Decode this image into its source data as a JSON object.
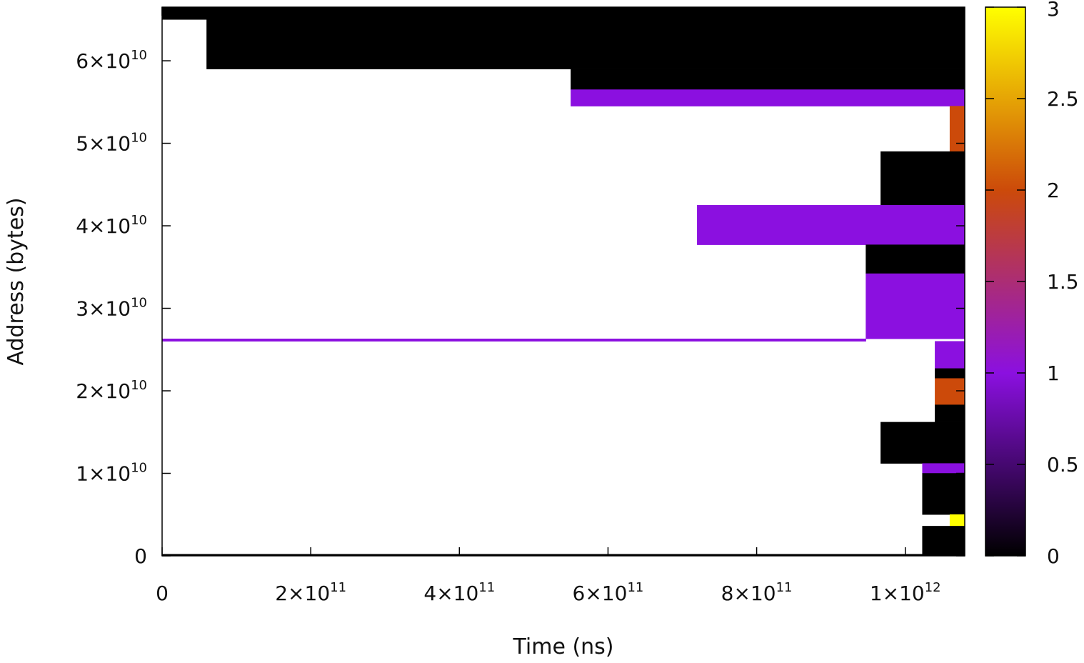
{
  "chart_data": {
    "type": "heatmap",
    "title": "",
    "xlabel": "Time (ns)",
    "ylabel": "Address (bytes)",
    "xlim": [
      0,
      1080000000000.0
    ],
    "ylim": [
      0,
      66500000000.0
    ],
    "grid": false,
    "legend": "none",
    "x_ticks": [
      {
        "value": 0,
        "base": "0",
        "exp": ""
      },
      {
        "value": 200000000000.0,
        "base": "2×10",
        "exp": "11"
      },
      {
        "value": 400000000000.0,
        "base": "4×10",
        "exp": "11"
      },
      {
        "value": 600000000000.0,
        "base": "6×10",
        "exp": "11"
      },
      {
        "value": 800000000000.0,
        "base": "8×10",
        "exp": "11"
      },
      {
        "value": 1000000000000.0,
        "base": "1×10",
        "exp": "12"
      }
    ],
    "y_ticks": [
      {
        "value": 0,
        "base": "0",
        "exp": ""
      },
      {
        "value": 10000000000.0,
        "base": "1×10",
        "exp": "10"
      },
      {
        "value": 20000000000.0,
        "base": "2×10",
        "exp": "10"
      },
      {
        "value": 30000000000.0,
        "base": "3×10",
        "exp": "10"
      },
      {
        "value": 40000000000.0,
        "base": "4×10",
        "exp": "10"
      },
      {
        "value": 50000000000.0,
        "base": "5×10",
        "exp": "10"
      },
      {
        "value": 60000000000.0,
        "base": "6×10",
        "exp": "10"
      }
    ],
    "colorbar": {
      "range": [
        0,
        3
      ],
      "palette": [
        "#000000",
        "#8b10e0",
        "#cc4a0a",
        "#ffff00"
      ],
      "ticks": [
        {
          "value": 0,
          "label": "0"
        },
        {
          "value": 0.5,
          "label": "0.5"
        },
        {
          "value": 1,
          "label": "1"
        },
        {
          "value": 1.5,
          "label": "1.5"
        },
        {
          "value": 2,
          "label": "2"
        },
        {
          "value": 2.5,
          "label": "2.5"
        },
        {
          "value": 3,
          "label": "3"
        }
      ]
    },
    "cells": [
      {
        "x0": 0,
        "x1": 1080000000000.0,
        "y0": 65000000000.0,
        "y1": 66500000000.0,
        "value": 0
      },
      {
        "x0": 60000000000.0,
        "x1": 1080000000000.0,
        "y0": 59000000000.0,
        "y1": 65000000000.0,
        "value": 0
      },
      {
        "x0": 550000000000.0,
        "x1": 1080000000000.0,
        "y0": 56500000000.0,
        "y1": 59000000000.0,
        "value": 0
      },
      {
        "x0": 550000000000.0,
        "x1": 1080000000000.0,
        "y0": 54500000000.0,
        "y1": 56500000000.0,
        "value": 1
      },
      {
        "x0": 1060000000000.0,
        "x1": 1080000000000.0,
        "y0": 49000000000.0,
        "y1": 54500000000.0,
        "value": 2
      },
      {
        "x0": 967000000000.0,
        "x1": 1080000000000.0,
        "y0": 42500000000.0,
        "y1": 49000000000.0,
        "value": 0
      },
      {
        "x0": 720000000000.0,
        "x1": 1080000000000.0,
        "y0": 37700000000.0,
        "y1": 42500000000.0,
        "value": 1
      },
      {
        "x0": 947000000000.0,
        "x1": 1080000000000.0,
        "y0": 34200000000.0,
        "y1": 37700000000.0,
        "value": 0
      },
      {
        "x0": 947000000000.0,
        "x1": 1080000000000.0,
        "y0": 26300000000.0,
        "y1": 34200000000.0,
        "value": 1
      },
      {
        "x0": 0,
        "x1": 947000000000.0,
        "y0": 26000000000.0,
        "y1": 26300000000.0,
        "value": 1
      },
      {
        "x0": 1040000000000.0,
        "x1": 1080000000000.0,
        "y0": 22700000000.0,
        "y1": 26000000000.0,
        "value": 1
      },
      {
        "x0": 1040000000000.0,
        "x1": 1080000000000.0,
        "y0": 21500000000.0,
        "y1": 22700000000.0,
        "value": 0
      },
      {
        "x0": 1040000000000.0,
        "x1": 1080000000000.0,
        "y0": 18300000000.0,
        "y1": 21500000000.0,
        "value": 2
      },
      {
        "x0": 1040000000000.0,
        "x1": 1080000000000.0,
        "y0": 16200000000.0,
        "y1": 18300000000.0,
        "value": 0
      },
      {
        "x0": 967000000000.0,
        "x1": 1080000000000.0,
        "y0": 11200000000.0,
        "y1": 16200000000.0,
        "value": 0
      },
      {
        "x0": 1023000000000.0,
        "x1": 1080000000000.0,
        "y0": 10000000000.0,
        "y1": 11200000000.0,
        "value": 1
      },
      {
        "x0": 1023000000000.0,
        "x1": 1080000000000.0,
        "y0": 5000000000.0,
        "y1": 10000000000.0,
        "value": 0
      },
      {
        "x0": 1060000000000.0,
        "x1": 1080000000000.0,
        "y0": 3600000000.0,
        "y1": 5000000000.0,
        "value": 3
      },
      {
        "x0": 1023000000000.0,
        "x1": 1080000000000.0,
        "y0": 0,
        "y1": 3600000000.0,
        "value": 0
      },
      {
        "x0": 0,
        "x1": 1080000000000.0,
        "y0": 0,
        "y1": 200000000.0,
        "value": 0
      }
    ]
  }
}
